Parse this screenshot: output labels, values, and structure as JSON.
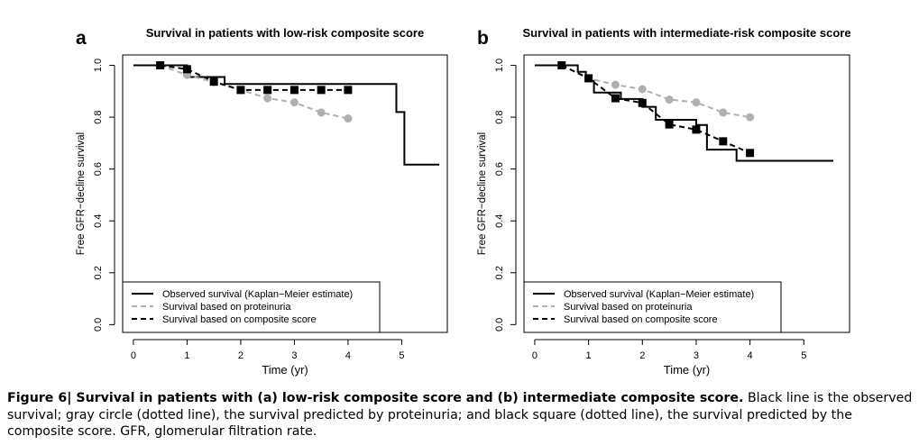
{
  "caption": {
    "lead": "Figure 6| Survival in patients with (a) low-risk composite score and (b) intermediate composite score.",
    "body": " Black line is the observed survival; gray circle (dotted line), the survival predicted by proteinuria; and black square (dotted line), the survival predicted by the composite score. GFR, glomerular filtration rate."
  },
  "colors": {
    "observed": "#000000",
    "proteinuria": "#b0b0b0",
    "composite": "#000000"
  },
  "chart_data": [
    {
      "panel_label": "a",
      "type": "line",
      "title": "Survival in patients with low-risk composite score",
      "xlabel": "Time (yr)",
      "ylabel": "Free GFR−decline survival",
      "xlim": [
        -0.2,
        5.85
      ],
      "ylim": [
        -0.03,
        1.04
      ],
      "x_ticks": [
        0,
        1,
        2,
        3,
        4,
        5
      ],
      "y_ticks": [
        0.0,
        0.2,
        0.4,
        0.6,
        0.8,
        1.0
      ],
      "y_tick_labels": [
        "0.0",
        "0.2",
        "0.4",
        "0.6",
        "0.8",
        "1.0"
      ],
      "grid": false,
      "legend_position": "bottom-left",
      "series": [
        {
          "name": "Observed survival (Kaplan−Meier estimate)",
          "style": "step",
          "x": [
            0,
            0.5,
            1.0,
            1.3,
            1.7,
            4.9,
            5.05,
            5.7
          ],
          "y": [
            1.0,
            1.0,
            0.955,
            0.955,
            0.928,
            0.82,
            0.617,
            0.617
          ]
        },
        {
          "name": "Survival based on proteinuria",
          "style": "dashed-circles",
          "x": [
            0.5,
            1.0,
            1.5,
            2.0,
            2.5,
            3.0,
            3.5,
            4.0
          ],
          "y": [
            1.0,
            0.963,
            0.935,
            0.905,
            0.873,
            0.857,
            0.818,
            0.795
          ]
        },
        {
          "name": "Survival based on composite score",
          "style": "dashed-squares",
          "x": [
            0.5,
            1.0,
            1.5,
            2.0,
            2.5,
            3.0,
            3.5,
            4.0
          ],
          "y": [
            1.0,
            0.985,
            0.937,
            0.905,
            0.905,
            0.905,
            0.905,
            0.905
          ]
        }
      ]
    },
    {
      "panel_label": "b",
      "type": "line",
      "title": "Survival in patients with intermediate-risk composite score",
      "xlabel": "Time (yr)",
      "ylabel": "Free GFR−decline survival",
      "xlim": [
        -0.2,
        5.85
      ],
      "ylim": [
        -0.03,
        1.04
      ],
      "x_ticks": [
        0,
        1,
        2,
        3,
        4,
        5
      ],
      "y_ticks": [
        0.0,
        0.2,
        0.4,
        0.6,
        0.8,
        1.0
      ],
      "y_tick_labels": [
        "0.0",
        "0.2",
        "0.4",
        "0.6",
        "0.8",
        "1.0"
      ],
      "grid": false,
      "legend_position": "bottom-left",
      "series": [
        {
          "name": "Observed survival (Kaplan−Meier estimate)",
          "style": "step",
          "x": [
            0,
            0.5,
            0.8,
            0.95,
            1.1,
            1.6,
            2.0,
            2.25,
            3.0,
            3.2,
            3.75,
            5.55
          ],
          "y": [
            1.0,
            1.0,
            0.975,
            0.94,
            0.895,
            0.87,
            0.84,
            0.79,
            0.77,
            0.675,
            0.632,
            0.632
          ]
        },
        {
          "name": "Survival based on proteinuria",
          "style": "dashed-circles",
          "x": [
            0.5,
            1.0,
            1.5,
            2.0,
            2.5,
            3.0,
            3.5,
            4.0
          ],
          "y": [
            1.0,
            0.95,
            0.925,
            0.908,
            0.868,
            0.857,
            0.818,
            0.8
          ]
        },
        {
          "name": "Survival based on composite score",
          "style": "dashed-squares",
          "x": [
            0.5,
            1.0,
            1.5,
            2.0,
            2.5,
            3.0,
            3.5,
            4.0
          ],
          "y": [
            1.0,
            0.95,
            0.873,
            0.855,
            0.772,
            0.752,
            0.707,
            0.662
          ]
        }
      ]
    }
  ]
}
